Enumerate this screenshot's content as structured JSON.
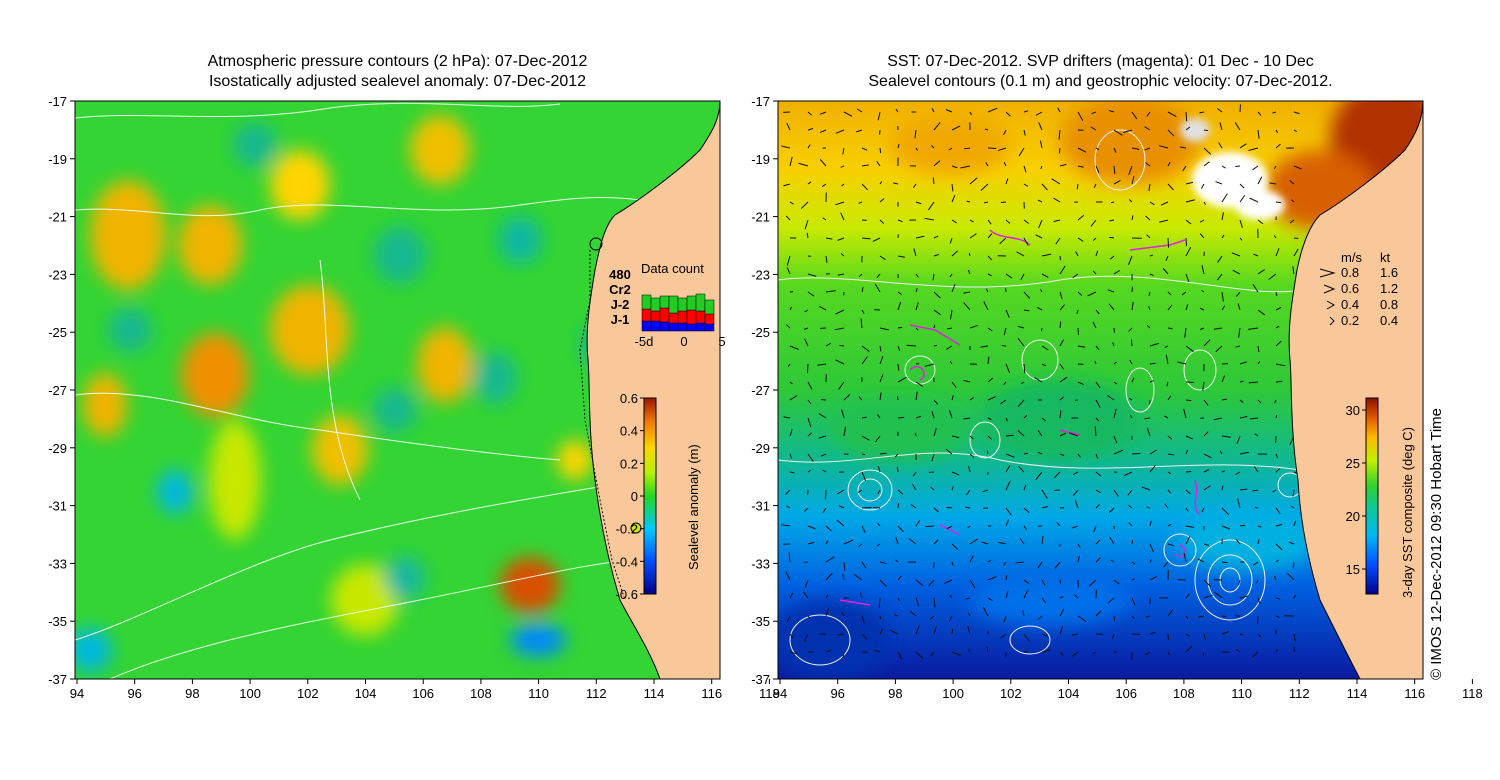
{
  "left_panel": {
    "title_line1": "Atmospheric pressure contours (2 hPa): 07-Dec-2012",
    "title_line2": "Isostatically adjusted sealevel anomaly: 07-Dec-2012",
    "colorbar": {
      "label": "Sealevel anomaly (m)",
      "ticks": [
        "0.6",
        "0.4",
        "0.2",
        "0",
        "-0.2",
        "-0.4",
        "-0.6"
      ]
    },
    "data_count": {
      "title": "Data count",
      "sources": [
        {
          "name": "480",
          "color": "#000000"
        },
        {
          "name": "Cr2",
          "color": "#22cc22"
        },
        {
          "name": "J-2",
          "color": "#ff0000"
        },
        {
          "name": "J-1",
          "color": "#0000ff"
        }
      ],
      "x_ticks": [
        "-5d",
        "0",
        "5"
      ]
    }
  },
  "right_panel": {
    "title_line1": "SST: 07-Dec-2012. SVP drifters (magenta): 01 Dec - 10 Dec",
    "title_line2": "Sealevel contours (0.1 m) and geostrophic velocity: 07-Dec-2012.",
    "colorbar": {
      "label": "3-day SST composite (deg C)",
      "ticks": [
        "30",
        "25",
        "20",
        "15"
      ]
    },
    "velocity_legend": {
      "header_ms": "m/s",
      "header_kt": "kt",
      "rows": [
        {
          "ms": "0.8",
          "kt": "1.6"
        },
        {
          "ms": "0.6",
          "kt": "1.2"
        },
        {
          "ms": "0.4",
          "kt": "0.8"
        },
        {
          "ms": "0.2",
          "kt": "0.4"
        }
      ]
    }
  },
  "axes": {
    "x_ticks": [
      "94",
      "96",
      "98",
      "100",
      "102",
      "104",
      "106",
      "108",
      "110",
      "112",
      "114",
      "116",
      "118"
    ],
    "y_ticks": [
      "-17",
      "-19",
      "-21",
      "-23",
      "-25",
      "-27",
      "-29",
      "-31",
      "-33",
      "-35",
      "-37"
    ]
  },
  "credit": "© IMOS 12-Dec-2012 09:30 Hobart Time",
  "colors": {
    "land": "#f9c89a",
    "ocean_green": "#33d433",
    "sst_warm": "#e08a1a",
    "sst_cold": "#1040c0"
  }
}
